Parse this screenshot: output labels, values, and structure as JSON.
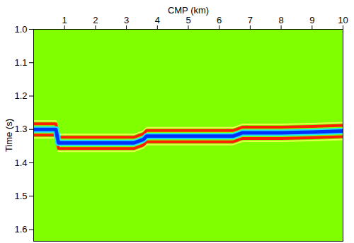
{
  "chart_data": {
    "type": "seismic",
    "x_label": "CMP (km)",
    "y_label": "Time (s)",
    "xlim": [
      0,
      10
    ],
    "ylim": [
      1.0,
      1.635
    ],
    "xticks": [
      1,
      2,
      3,
      4,
      5,
      6,
      7,
      8,
      9,
      10
    ],
    "yticks": [
      {
        "value": 1.0,
        "label": "1.0"
      },
      1.1,
      1.2,
      1.3,
      1.4,
      1.5,
      1.6
    ],
    "color": "#80ff00",
    "x": [
      0,
      0.72,
      0.8,
      3.25,
      3.55,
      3.65,
      6.45,
      6.6,
      6.75,
      8,
      9,
      10
    ],
    "values": [
      1.3,
      1.3,
      1.34,
      1.34,
      1.33,
      1.32,
      1.32,
      1.315,
      1.31,
      1.31,
      1.308,
      1.305
    ]
  }
}
